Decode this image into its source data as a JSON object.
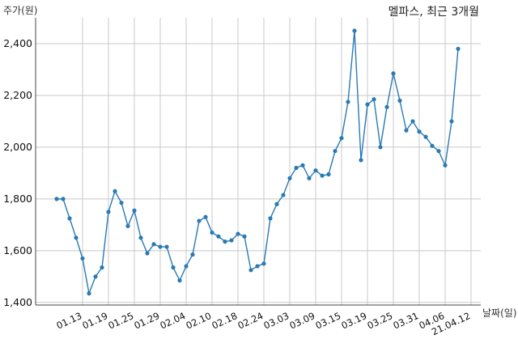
{
  "chart_data": {
    "type": "line",
    "title": "멜파스, 최근 3개월",
    "ylabel": "주가(원)",
    "xlabel": "날짜(일)",
    "ylim": [
      1390,
      2500
    ],
    "yticks": [
      1400,
      1600,
      1800,
      2000,
      2200,
      2400
    ],
    "ytick_labels": [
      "1,400",
      "1,600",
      "1,800",
      "2,000",
      "2,200",
      "2,400"
    ],
    "xtick_labels": [
      "01.13",
      "01.19",
      "01.25",
      "01.29",
      "02.04",
      "02.10",
      "02.18",
      "02.24",
      "03.03",
      "03.09",
      "03.15",
      "03.19",
      "03.25",
      "03.31",
      "04.06",
      "21.04.12"
    ],
    "xtick_positions": [
      4,
      8,
      12,
      16,
      20,
      24,
      28,
      32,
      36,
      40,
      44,
      48,
      52,
      56,
      60,
      64
    ],
    "grid": true,
    "legend": "none",
    "color": "#2a7ab3",
    "series": [
      {
        "values": [
          1800,
          1800,
          1725,
          1650,
          1570,
          1435,
          1500,
          1535,
          1750,
          1830,
          1785,
          1695,
          1755,
          1650,
          1590,
          1625,
          1615,
          1615,
          1535,
          1485,
          1540,
          1585,
          1715,
          1730,
          1670,
          1655,
          1635,
          1640,
          1665,
          1655,
          1525,
          1540,
          1550,
          1725,
          1780,
          1815,
          1880,
          1920,
          1930,
          1880,
          1910,
          1890,
          1895,
          1985,
          2035,
          2175,
          2450,
          1950,
          2165,
          2185,
          2000,
          2155,
          2285,
          2180,
          2065,
          2100,
          2060,
          2040,
          2005,
          1985,
          1930,
          2100,
          2380
        ]
      }
    ]
  }
}
